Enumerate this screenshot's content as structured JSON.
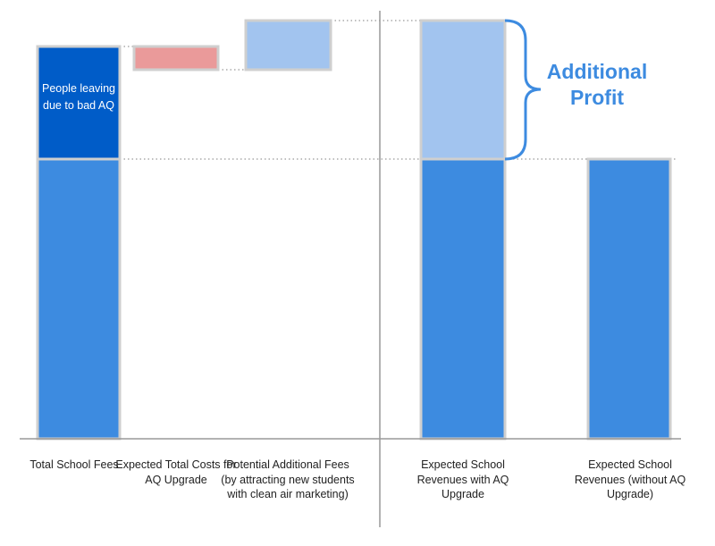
{
  "chart_data": {
    "type": "bar",
    "subtype": "waterfall",
    "title": "",
    "xlabel": "",
    "ylabel": "",
    "ylim": [
      0,
      480
    ],
    "grid": false,
    "categories": [
      "Total School Fees",
      "Expected Total Costs for AQ Upgrade",
      "Potential Additional Fees (by attracting new students with clean air marketing)",
      "Expected School Revenues with AQ Upgrade",
      "Expected School Revenues (without AQ Upgrade)"
    ],
    "segments": [
      {
        "category": 0,
        "base": 0,
        "value": 313,
        "kind": "retained",
        "color": "#3d8be0"
      },
      {
        "category": 0,
        "base": 313,
        "value": 126,
        "kind": "lost",
        "label": "People leaving due to bad AQ",
        "color": "#005cc8"
      },
      {
        "category": 1,
        "base": 413,
        "value": 26,
        "kind": "cost",
        "color": "#ea9a9a"
      },
      {
        "category": 2,
        "base": 413,
        "value": 55,
        "kind": "gain",
        "color": "#a2c4ef"
      },
      {
        "category": 3,
        "base": 0,
        "value": 313,
        "kind": "retained",
        "color": "#3d8be0"
      },
      {
        "category": 3,
        "base": 313,
        "value": 155,
        "kind": "gain",
        "color": "#a2c4ef"
      },
      {
        "category": 4,
        "base": 0,
        "value": 313,
        "kind": "retained",
        "color": "#3d8be0"
      }
    ],
    "inner_label": "People leaving due to bad AQ",
    "annotation": "Additional Profit",
    "annotation_color": "#3d8be0",
    "note": "values in relative units; chart shows no numeric axis"
  },
  "labels": {
    "x0": "Total School Fees",
    "x1": "Expected Total Costs for AQ Upgrade",
    "x2": "Potential Additional Fees (by attracting new students with clean air marketing)",
    "x3": "Expected School Revenues with AQ Upgrade",
    "x4": "Expected School Revenues (without AQ Upgrade)",
    "inner": "People leaving due to bad AQ",
    "annotation": "Additional Profit"
  }
}
